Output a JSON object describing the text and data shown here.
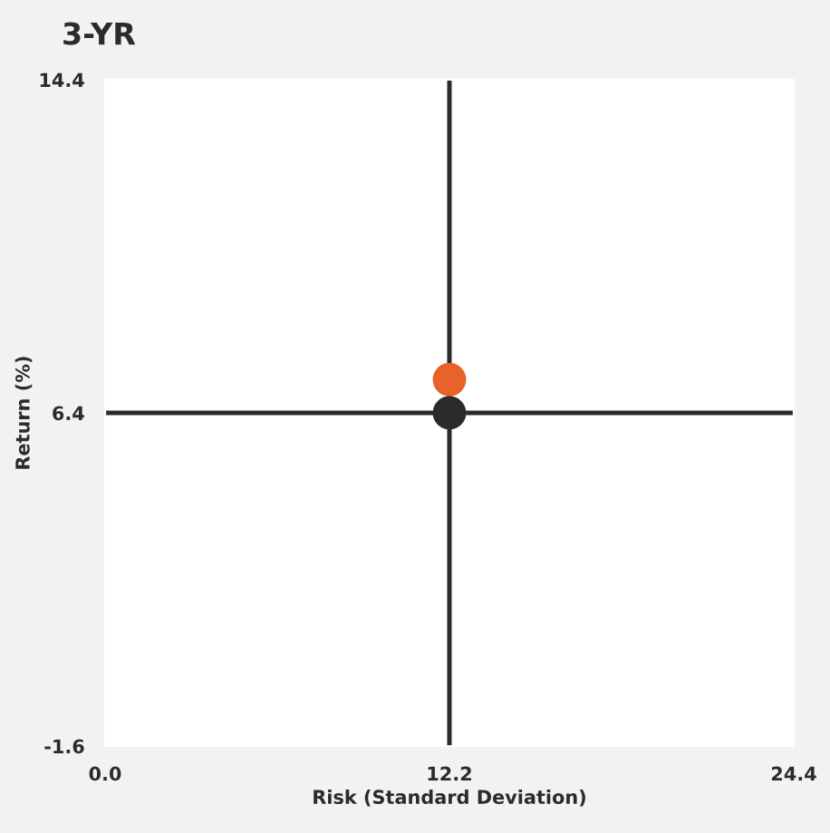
{
  "chart_data": {
    "type": "scatter",
    "title": "3-YR",
    "xlabel": "Risk (Standard Deviation)",
    "ylabel": "Return (%)",
    "xlim": [
      0,
      24.4
    ],
    "ylim": [
      -1.6,
      14.4
    ],
    "xticks": [
      {
        "value": 0,
        "label": "0.0"
      },
      12.2,
      24.4
    ],
    "yticks": [
      -1.6,
      6.4,
      14.4
    ],
    "grid": false,
    "marker": "circle",
    "series": [
      {
        "color": "#2b2b2b",
        "x": [
          12.2
        ],
        "values": [
          6.4
        ]
      },
      {
        "color": "#e8622a",
        "x": [
          12.2
        ],
        "values": [
          7.2
        ]
      }
    ],
    "ref_lines": [
      {
        "axis": "x",
        "value": 12.2,
        "color": "#2b2b2b"
      },
      {
        "axis": "y",
        "value": 6.4,
        "color": "#2b2b2b"
      }
    ]
  }
}
